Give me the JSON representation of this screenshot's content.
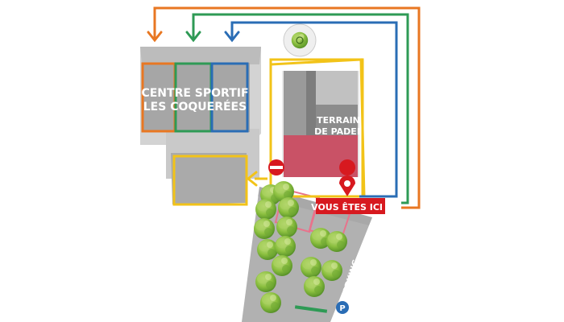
{
  "map": {
    "building_label_line1": "CENTRE SPORTIF",
    "building_label_line2": "LES COQUERÉES",
    "padel_label_line1": "TERRAIN",
    "padel_label_line2": "DE PADEL",
    "you_are_here": "VOUS ÊTES ICI !",
    "parking_label": "PARKING",
    "parking_letter": "P"
  },
  "colors": {
    "orange_route": "#e87722",
    "green_route": "#2e9a55",
    "blue_route": "#2a6db5",
    "yellow_zone": "#f2c318",
    "red_accent": "#d7191f",
    "pink_zone": "#e8738c",
    "building_gray": "#a6a6a6",
    "parking_lot": "#b1b1b1",
    "tree_green": "#7cb83a"
  },
  "icons": [
    "no-entry-icon",
    "location-pin-icon",
    "parking-icon",
    "down-arrow-icon",
    "left-arrow-icon",
    "tree-icon"
  ]
}
